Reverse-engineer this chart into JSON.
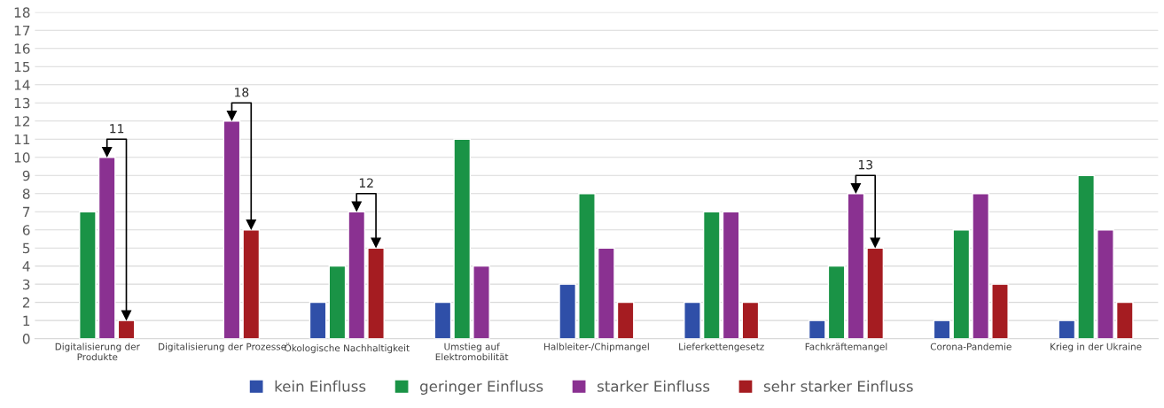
{
  "chart_data": {
    "type": "bar",
    "categories": [
      "Digitalisierung der\nProdukte",
      "Digitalisierung der Prozesse",
      "Ökologische Nachhaltigkeit",
      "Umstieg auf\nElektromobilität",
      "Halbleiter-/Chipmangel",
      "Lieferkettengesetz",
      "Fachkräftemangel",
      "Corona-Pandemie",
      "Krieg in der Ukraine"
    ],
    "series": [
      {
        "name": "kein Einfluss",
        "color": "#2f4fa8",
        "values": [
          null,
          null,
          2,
          2,
          3,
          2,
          1,
          1,
          1
        ]
      },
      {
        "name": "geringer Einfluss",
        "color": "#1a9346",
        "values": [
          7,
          null,
          4,
          11,
          8,
          7,
          4,
          6,
          9
        ]
      },
      {
        "name": "starker Einfluss",
        "color": "#8a3191",
        "values": [
          10,
          12,
          7,
          4,
          5,
          7,
          8,
          8,
          6
        ]
      },
      {
        "name": "sehr starker Einfluss",
        "color": "#a51c21",
        "values": [
          1,
          6,
          5,
          null,
          2,
          2,
          5,
          3,
          2
        ]
      }
    ],
    "ylim": [
      0,
      18
    ],
    "yticks": [
      0,
      1,
      2,
      3,
      4,
      5,
      6,
      7,
      8,
      9,
      10,
      11,
      12,
      13,
      14,
      15,
      16,
      17,
      18
    ],
    "grid": "y",
    "legend": "bottom",
    "annotations": [
      {
        "text": "11",
        "x": "Digitalisierung der\nProdukte",
        "y": 10
      },
      {
        "text": "18",
        "x": "Digitalisierung der Prozesse",
        "y": 12
      },
      {
        "text": "12",
        "x": "Ökologische Nachhaltigkeit",
        "y": 7
      },
      {
        "text": "13",
        "x": "Fachkräftemangel",
        "y": 8
      }
    ]
  }
}
